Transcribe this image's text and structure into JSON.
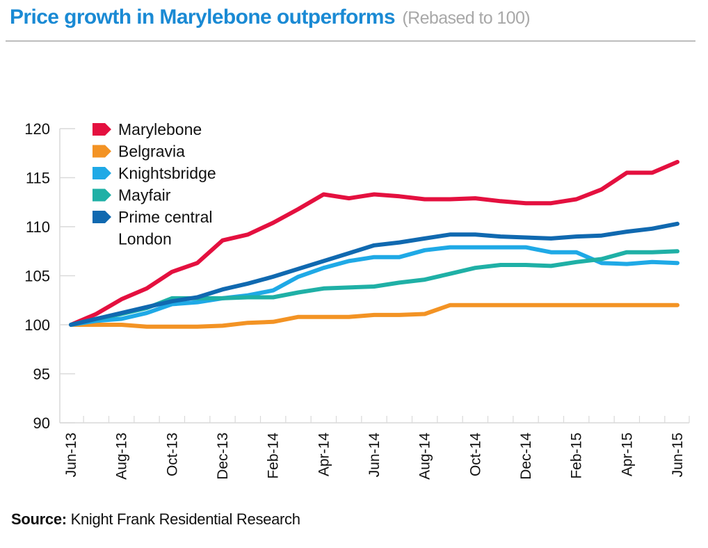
{
  "header": {
    "title": "Price growth in Marylebone outperforms",
    "subtitle": "(Rebased to 100)"
  },
  "footer": {
    "source_label": "Source:",
    "source_text": "Knight Frank Residential Research"
  },
  "chart_data": {
    "type": "line",
    "title": "Price growth in Marylebone outperforms (Rebased to 100)",
    "xlabel": "",
    "ylabel": "",
    "ylim": [
      90,
      120
    ],
    "yticks": [
      90,
      95,
      100,
      105,
      110,
      115,
      120
    ],
    "x": [
      "Jun-13",
      "Jul-13",
      "Aug-13",
      "Sep-13",
      "Oct-13",
      "Nov-13",
      "Dec-13",
      "Jan-14",
      "Feb-14",
      "Mar-14",
      "Apr-14",
      "May-14",
      "Jun-14",
      "Jul-14",
      "Aug-14",
      "Sep-14",
      "Oct-14",
      "Nov-14",
      "Dec-14",
      "Jan-15",
      "Feb-15",
      "Mar-15",
      "Apr-15",
      "May-15",
      "Jun-15"
    ],
    "xtick_labels": [
      "Jun-13",
      "Aug-13",
      "Oct-13",
      "Dec-13",
      "Feb-14",
      "Apr-14",
      "Jun-14",
      "Aug-14",
      "Oct-14",
      "Dec-14",
      "Feb-15",
      "Apr-15",
      "Jun-15"
    ],
    "grid": false,
    "legend_position": "top-left",
    "series": [
      {
        "name": "Marylebone",
        "color": "#e4103f",
        "values": [
          100,
          101.1,
          102.6,
          103.7,
          105.4,
          106.3,
          108.6,
          109.2,
          110.4,
          111.8,
          113.3,
          112.9,
          113.3,
          113.1,
          112.8,
          112.8,
          112.9,
          112.6,
          112.4,
          112.4,
          112.8,
          113.8,
          115.5,
          115.5,
          116.6
        ]
      },
      {
        "name": "Belgravia",
        "color": "#f39324",
        "values": [
          100,
          100,
          100,
          99.8,
          99.8,
          99.8,
          99.9,
          100.2,
          100.3,
          100.8,
          100.8,
          100.8,
          101.0,
          101.0,
          101.1,
          102.0,
          102.0,
          102.0,
          102.0,
          102.0,
          102.0,
          102.0,
          102.0,
          102.0,
          102.0
        ]
      },
      {
        "name": "Knightsbridge",
        "color": "#1fa9e6",
        "values": [
          100,
          100.4,
          100.6,
          101.2,
          102.1,
          102.3,
          102.7,
          103.0,
          103.5,
          104.9,
          105.8,
          106.5,
          106.9,
          106.9,
          107.6,
          107.9,
          107.9,
          107.9,
          107.9,
          107.4,
          107.4,
          106.3,
          106.2,
          106.4,
          106.3
        ]
      },
      {
        "name": "Mayfair",
        "color": "#1fb0a6",
        "values": [
          100,
          100.6,
          101.1,
          101.7,
          102.7,
          102.7,
          102.7,
          102.8,
          102.8,
          103.3,
          103.7,
          103.8,
          103.9,
          104.3,
          104.6,
          105.2,
          105.8,
          106.1,
          106.1,
          106.0,
          106.4,
          106.7,
          107.4,
          107.4,
          107.5
        ]
      },
      {
        "name": "Prime central London",
        "color": "#1069b0",
        "values": [
          100,
          100.6,
          101.2,
          101.8,
          102.4,
          102.8,
          103.6,
          104.2,
          104.9,
          105.7,
          106.5,
          107.3,
          108.1,
          108.4,
          108.8,
          109.2,
          109.2,
          109.0,
          108.9,
          108.8,
          109.0,
          109.1,
          109.5,
          109.8,
          110.3
        ]
      }
    ]
  }
}
